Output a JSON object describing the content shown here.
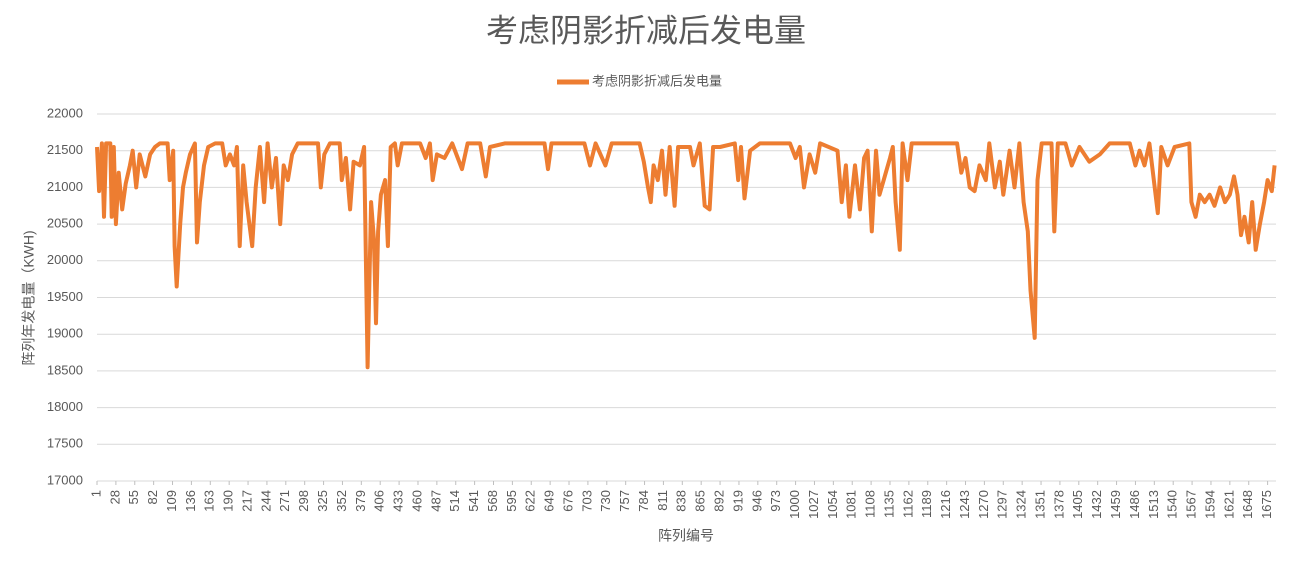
{
  "chart_data": {
    "type": "line",
    "title": "考虑阴影折减后发电量",
    "x_label": "阵列编号",
    "y_label": "阵列年发电量（KWH)",
    "legend": "top",
    "grid": true,
    "xlim": [
      1,
      1687
    ],
    "ylim": [
      17000,
      22000
    ],
    "yticks": [
      17000,
      17500,
      18000,
      18500,
      19000,
      19500,
      20000,
      20500,
      21000,
      21500,
      22000
    ],
    "xticks": [
      1,
      28,
      55,
      82,
      109,
      136,
      163,
      190,
      217,
      244,
      271,
      298,
      325,
      352,
      379,
      406,
      433,
      460,
      487,
      514,
      541,
      568,
      595,
      622,
      649,
      676,
      703,
      730,
      757,
      784,
      811,
      838,
      865,
      892,
      919,
      946,
      973,
      1000,
      1027,
      1054,
      1081,
      1108,
      1135,
      1162,
      1189,
      1216,
      1243,
      1270,
      1297,
      1324,
      1351,
      1378,
      1405,
      1432,
      1459,
      1486,
      1513,
      1540,
      1567,
      1594,
      1621,
      1648,
      1675
    ],
    "x": [
      1,
      4,
      8,
      11,
      14,
      20,
      22,
      25,
      28,
      32,
      37,
      42,
      48,
      52,
      57,
      62,
      70,
      77,
      84,
      91,
      102,
      105,
      110,
      112,
      115,
      120,
      124,
      128,
      134,
      141,
      144,
      148,
      154,
      160,
      170,
      180,
      185,
      191,
      197,
      201,
      205,
      210,
      215,
      223,
      228,
      234,
      240,
      245,
      251,
      257,
      263,
      268,
      274,
      280,
      288,
      317,
      321,
      326,
      334,
      348,
      351,
      357,
      363,
      368,
      377,
      383,
      388,
      393,
      397,
      400,
      403,
      407,
      413,
      417,
      421,
      427,
      431,
      437,
      463,
      471,
      477,
      481,
      487,
      498,
      509,
      523,
      531,
      549,
      557,
      563,
      584,
      641,
      646,
      651,
      698,
      706,
      714,
      728,
      737,
      777,
      783,
      789,
      793,
      797,
      803,
      809,
      814,
      820,
      827,
      832,
      849,
      854,
      863,
      870,
      877,
      882,
      892,
      913,
      918,
      922,
      927,
      935,
      949,
      992,
      1000,
      1006,
      1012,
      1020,
      1028,
      1035,
      1060,
      1066,
      1072,
      1077,
      1085,
      1092,
      1098,
      1103,
      1109,
      1115,
      1120,
      1126,
      1135,
      1139,
      1143,
      1149,
      1153,
      1160,
      1166,
      1220,
      1231,
      1237,
      1243,
      1249,
      1256,
      1263,
      1272,
      1277,
      1285,
      1292,
      1297,
      1306,
      1313,
      1320,
      1326,
      1332,
      1336,
      1342,
      1346,
      1352,
      1366,
      1370,
      1375,
      1386,
      1395,
      1406,
      1420,
      1435,
      1449,
      1478,
      1486,
      1492,
      1499,
      1506,
      1518,
      1523,
      1532,
      1542,
      1563,
      1566,
      1572,
      1578,
      1585,
      1592,
      1599,
      1607,
      1614,
      1621,
      1627,
      1632,
      1637,
      1642,
      1648,
      1653,
      1658,
      1664,
      1670,
      1675,
      1681,
      1685
    ],
    "series": [
      {
        "name": "考虑阴影折减后发电量",
        "color": "#ed7d31",
        "values": [
          21550,
          20950,
          21600,
          20600,
          21600,
          21600,
          20600,
          21550,
          20500,
          21200,
          20700,
          21050,
          21300,
          21500,
          21000,
          21450,
          21150,
          21450,
          21550,
          21600,
          21600,
          21100,
          21500,
          20200,
          19650,
          20500,
          21000,
          21200,
          21450,
          21600,
          20250,
          20800,
          21300,
          21550,
          21600,
          21600,
          21300,
          21450,
          21300,
          21550,
          20200,
          21300,
          20800,
          20200,
          21000,
          21550,
          20800,
          21600,
          21000,
          21400,
          20500,
          21300,
          21100,
          21450,
          21600,
          21600,
          21000,
          21450,
          21600,
          21600,
          21100,
          21400,
          20700,
          21350,
          21300,
          21550,
          18550,
          20800,
          20300,
          19150,
          20400,
          20900,
          21100,
          20200,
          21550,
          21600,
          21300,
          21600,
          21600,
          21400,
          21600,
          21100,
          21450,
          21400,
          21600,
          21250,
          21600,
          21600,
          21150,
          21550,
          21600,
          21600,
          21250,
          21600,
          21600,
          21300,
          21600,
          21300,
          21600,
          21600,
          21350,
          21000,
          20800,
          21300,
          21100,
          21500,
          20900,
          21550,
          20750,
          21550,
          21550,
          21300,
          21600,
          20750,
          20700,
          21550,
          21550,
          21600,
          21100,
          21550,
          20850,
          21500,
          21600,
          21600,
          21400,
          21550,
          21000,
          21450,
          21200,
          21600,
          21500,
          20800,
          21300,
          20600,
          21300,
          20700,
          21400,
          21500,
          20400,
          21500,
          20900,
          21100,
          21400,
          21550,
          20800,
          20150,
          21600,
          21100,
          21600,
          21600,
          21600,
          21200,
          21400,
          21000,
          20950,
          21300,
          21100,
          21600,
          21000,
          21350,
          20900,
          21500,
          21000,
          21600,
          20800,
          20400,
          19600,
          18950,
          21100,
          21600,
          21600,
          20400,
          21600,
          21600,
          21300,
          21550,
          21350,
          21450,
          21600,
          21600,
          21300,
          21500,
          21300,
          21600,
          20650,
          21550,
          21300,
          21550,
          21600,
          20800,
          20600,
          20900,
          20800,
          20900,
          20750,
          21000,
          20800,
          20900,
          21150,
          20900,
          20350,
          20600,
          20250,
          20800,
          20150,
          20500,
          20800,
          21100,
          20950,
          21300
        ]
      }
    ]
  }
}
